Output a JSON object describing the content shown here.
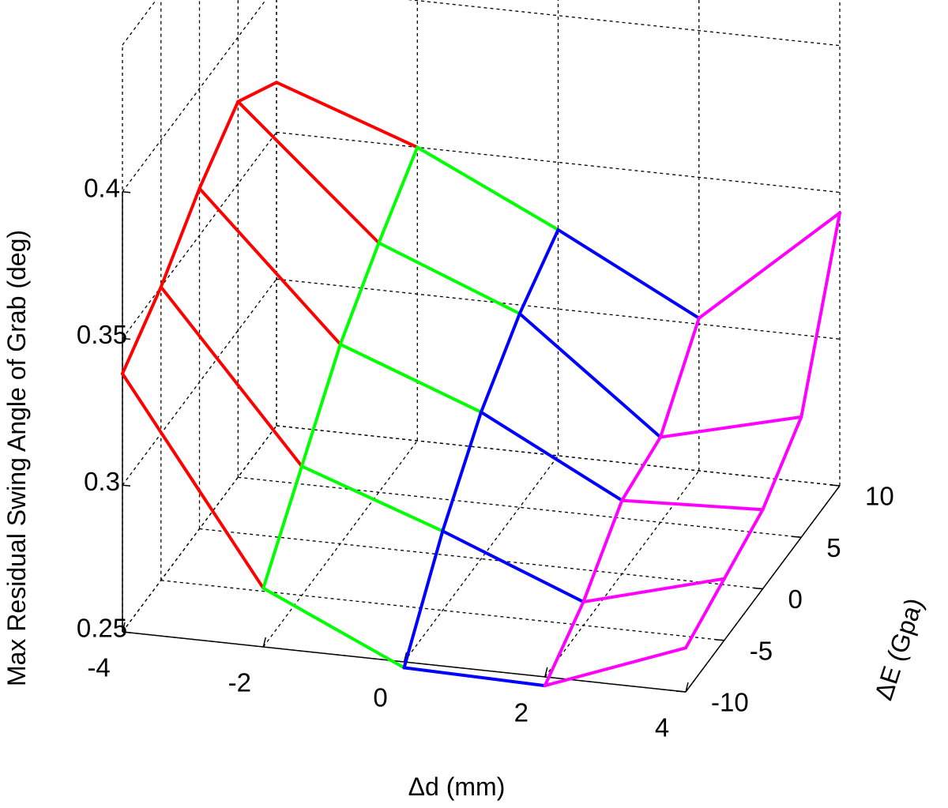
{
  "chart_data": {
    "type": "surface-mesh-3d",
    "title": "",
    "xlabel": "Δd (mm)",
    "ylabel": "ΔE (Gpa)",
    "zlabel": "Max Residual Swing Angle of Grab (deg)",
    "xticks": [
      "-4",
      "-2",
      "0",
      "2",
      "4"
    ],
    "yticks": [
      "-10",
      "-5",
      "0",
      "5",
      "10"
    ],
    "zticks": [
      "0.25",
      "0.3",
      "0.35",
      "0.4"
    ],
    "xlim": [
      -4,
      4
    ],
    "ylim": [
      -10,
      10
    ],
    "zlim": [
      0.25,
      0.45
    ],
    "grid": true,
    "x": [
      -4,
      -2,
      0,
      2,
      4
    ],
    "y": [
      -10,
      -5,
      0,
      5,
      10
    ],
    "z": [
      [
        0.338,
        0.35,
        0.366,
        0.378,
        0.367
      ],
      [
        0.27,
        0.294,
        0.318,
        0.335,
        0.35
      ],
      [
        0.248,
        0.277,
        0.3,
        0.316,
        0.327
      ],
      [
        0.247,
        0.258,
        0.275,
        0.279,
        0.302
      ],
      [
        0.265,
        0.271,
        0.277,
        0.291,
        0.343
      ]
    ],
    "series": [
      {
        "x_range": [
          -4,
          -2
        ],
        "color": "#ff0000"
      },
      {
        "x_range": [
          -2,
          0
        ],
        "color": "#00ff00"
      },
      {
        "x_range": [
          0,
          2
        ],
        "color": "#0000ff"
      },
      {
        "x_range": [
          2,
          4
        ],
        "color": "#ff00ff"
      }
    ]
  }
}
